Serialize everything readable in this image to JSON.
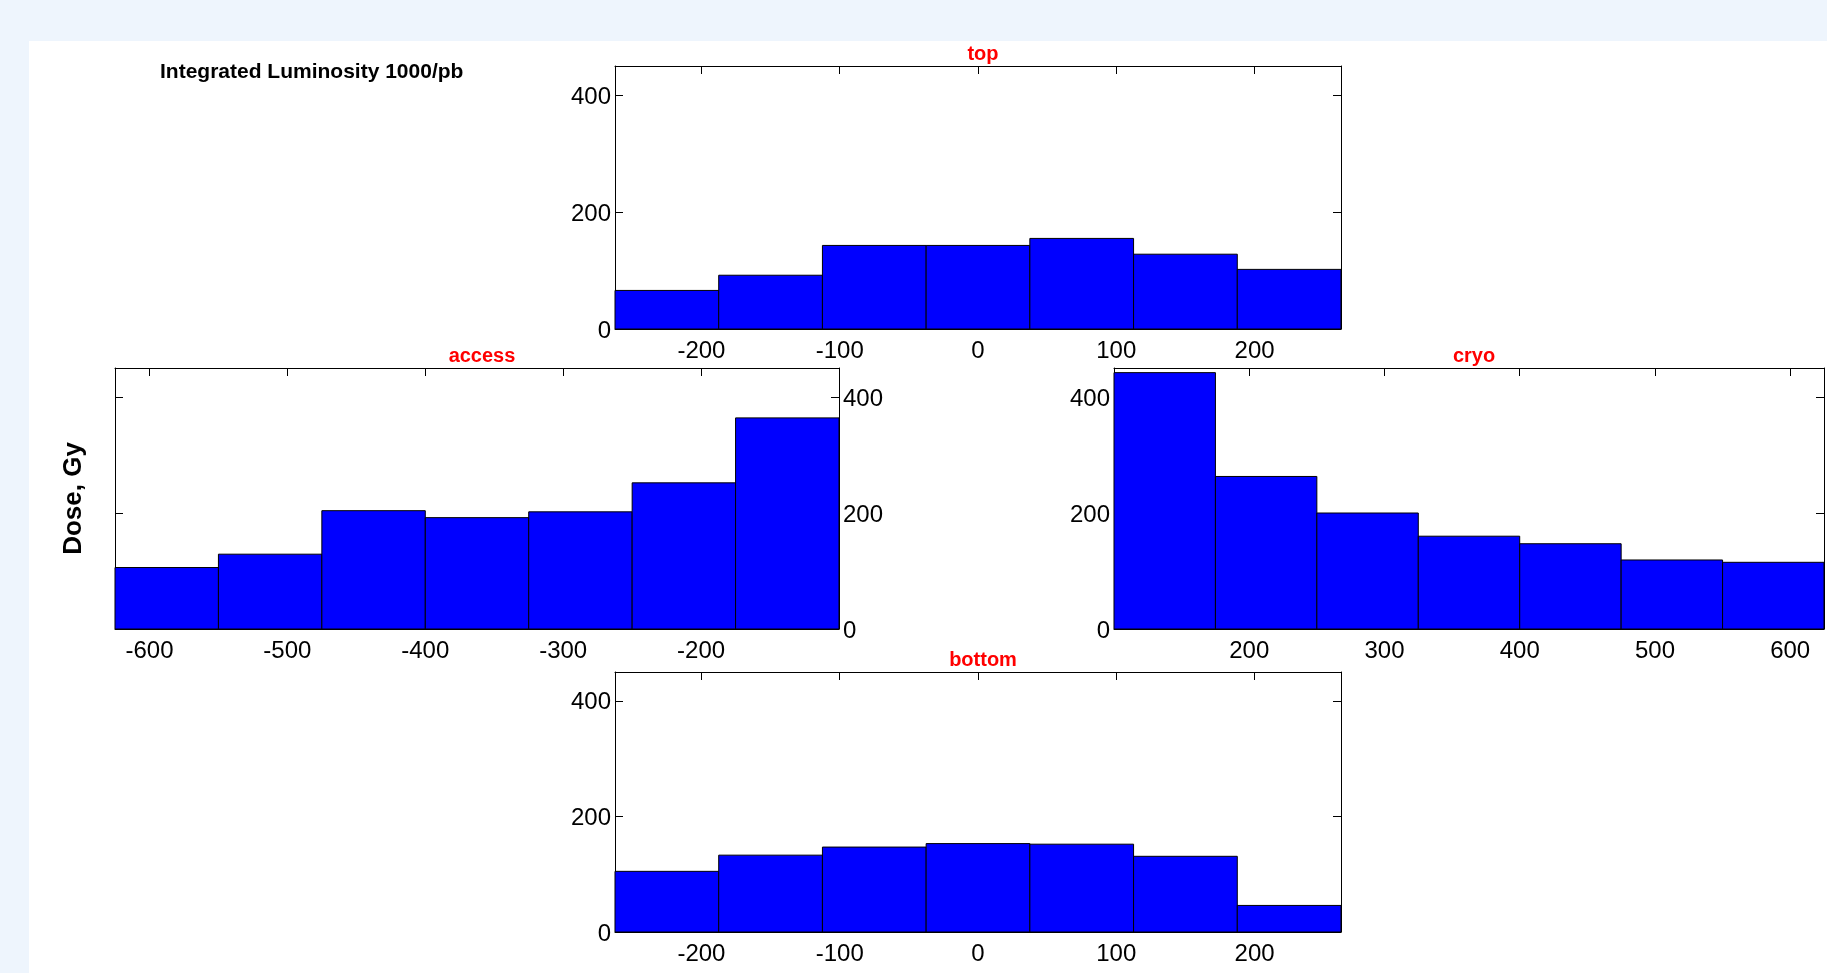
{
  "chart_data": [
    {
      "type": "histogram",
      "title": "top",
      "annotations": [
        "Integrated Luminosity 1000/pb"
      ],
      "bins": [
        -262.5,
        -187.5,
        -112.5,
        -37.5,
        37.5,
        112.5,
        187.5,
        262.5
      ],
      "values": [
        66,
        92,
        143,
        143,
        155,
        128,
        102
      ],
      "color": "#0000ff",
      "xlim": [
        -262.5,
        262.5
      ],
      "xticks": [
        -200,
        -100,
        0,
        100,
        200
      ],
      "ylim": [
        0,
        450
      ],
      "yticks": [
        0,
        200,
        400
      ]
    },
    {
      "type": "histogram",
      "title": "access",
      "ylabel": "Dose, Gy",
      "bins": [
        -625,
        -550,
        -475,
        -400,
        -325,
        -250,
        -175,
        -100
      ],
      "values": [
        106,
        129,
        204,
        192,
        202,
        252,
        364
      ],
      "color": "#0000ff",
      "xlim": [
        -625,
        -100
      ],
      "xticks": [
        -600,
        -500,
        -400,
        -300,
        -200
      ],
      "ylim": [
        0,
        450
      ],
      "yticks": [
        0,
        200,
        400
      ]
    },
    {
      "type": "histogram",
      "title": "cryo",
      "bins": [
        100,
        175,
        250,
        325,
        400,
        475,
        550,
        625
      ],
      "values": [
        442,
        263,
        200,
        160,
        147,
        119,
        115
      ],
      "color": "#0000ff",
      "xlim": [
        100,
        625
      ],
      "xticks": [
        200,
        300,
        400,
        500,
        600
      ],
      "ylim": [
        0,
        450
      ],
      "yticks": [
        0,
        200,
        400
      ]
    },
    {
      "type": "histogram",
      "title": "bottom",
      "bins": [
        -262.5,
        -187.5,
        -112.5,
        -37.5,
        37.5,
        112.5,
        187.5,
        262.5
      ],
      "values": [
        105,
        133,
        147,
        153,
        152,
        131,
        46
      ],
      "color": "#0000ff",
      "xlim": [
        -262.5,
        262.5
      ],
      "xticks": [
        -200,
        -100,
        0,
        100,
        200
      ],
      "ylim": [
        0,
        450
      ],
      "yticks": [
        0,
        200,
        400
      ]
    }
  ]
}
